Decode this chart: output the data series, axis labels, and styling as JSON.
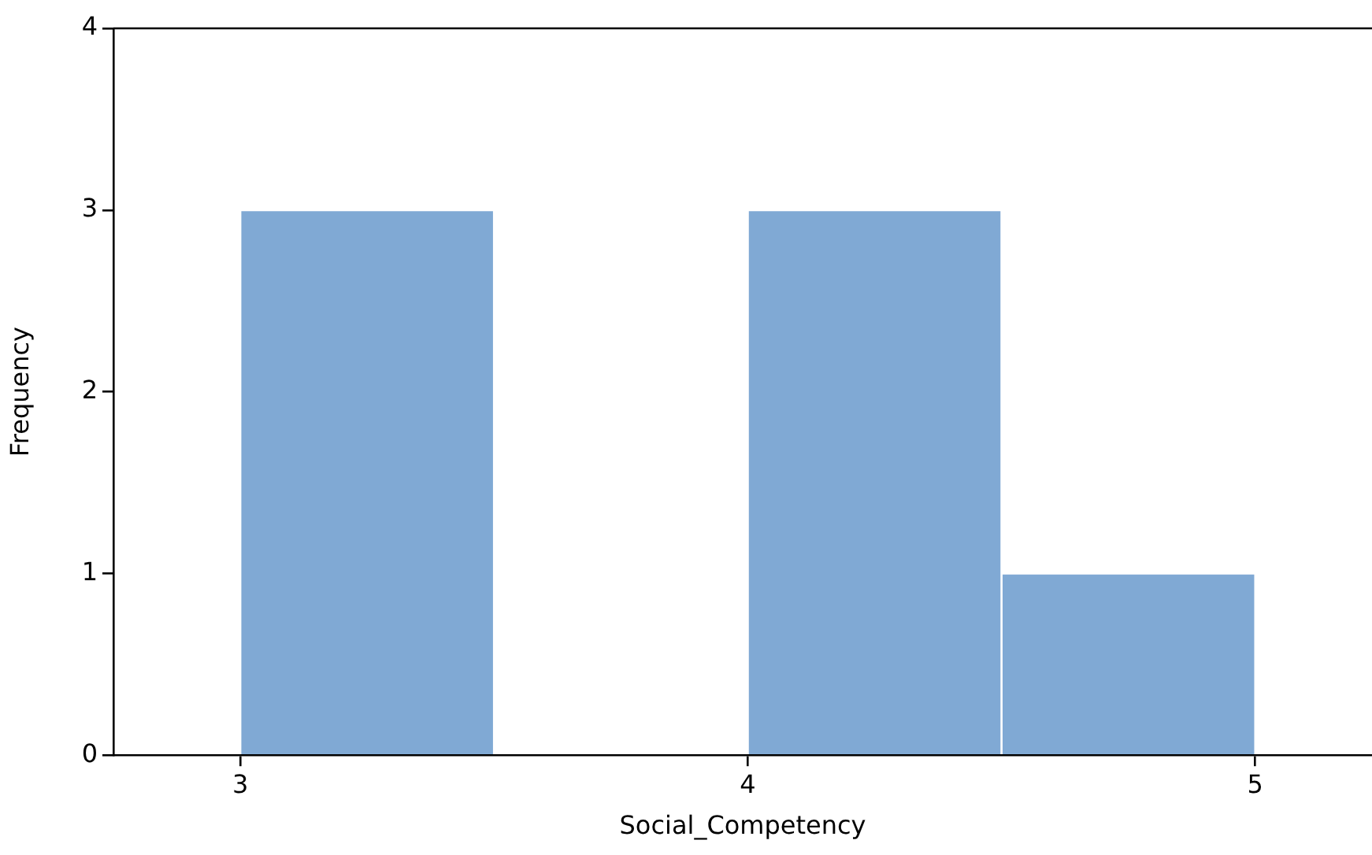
{
  "chart_data": {
    "type": "histogram",
    "xlabel": "Social_Competency",
    "ylabel": "Frequency",
    "bins": [
      3,
      3.5,
      4,
      4.5,
      5
    ],
    "values": [
      3,
      0,
      3,
      1
    ],
    "color": "#80a9d4",
    "xlim": [
      2.75,
      5.23
    ],
    "xticks": [
      3,
      4,
      5
    ],
    "ylim": [
      0,
      4
    ],
    "yticks": [
      0,
      1,
      2,
      3,
      4
    ],
    "grid": false,
    "legend": false
  }
}
